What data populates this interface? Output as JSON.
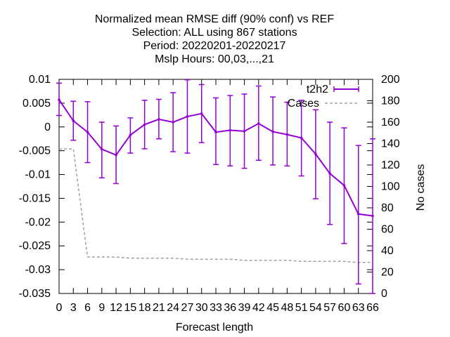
{
  "chart_data": {
    "type": "line",
    "title_lines": [
      "Normalized mean RMSE diff (90% conf) vs REF",
      "Selection: ALL using   867 stations",
      "Period: 20220201-20220217",
      "Mslp   Hours:  00,03,...,21"
    ],
    "xlabel": "Forecast length",
    "ylabel": "",
    "y2label": "No cases",
    "xlim": [
      0,
      66
    ],
    "ylim": [
      -0.035,
      0.01
    ],
    "y2lim": [
      0,
      200
    ],
    "x_ticks": [
      0,
      3,
      6,
      9,
      12,
      15,
      18,
      21,
      24,
      27,
      30,
      33,
      36,
      39,
      42,
      45,
      48,
      51,
      54,
      57,
      60,
      63,
      66
    ],
    "y_ticks": [
      0.01,
      0.005,
      0,
      -0.005,
      -0.01,
      -0.015,
      -0.02,
      -0.025,
      -0.03,
      -0.035
    ],
    "y_tick_labels": [
      "0.01",
      "0.005",
      "0",
      "-0.005",
      "-0.01",
      "-0.015",
      "-0.02",
      "-0.025",
      "-0.03",
      "-0.035"
    ],
    "y2_ticks": [
      0,
      20,
      40,
      60,
      80,
      100,
      120,
      140,
      160,
      180,
      200
    ],
    "grid": false,
    "legend_position": "top-right",
    "series": [
      {
        "name": "t2h2",
        "color": "#9400d3",
        "x": [
          0,
          3,
          6,
          9,
          12,
          15,
          18,
          21,
          24,
          27,
          30,
          33,
          36,
          39,
          42,
          45,
          48,
          51,
          54,
          57,
          60,
          63,
          66
        ],
        "y": [
          0.0057,
          0.0013,
          -0.0011,
          -0.0047,
          -0.0059,
          -0.0017,
          0.0005,
          0.0016,
          0.001,
          0.0022,
          0.0028,
          -0.0011,
          -0.0007,
          -0.0009,
          0.0007,
          -0.001,
          -0.0016,
          -0.0023,
          -0.0057,
          -0.0098,
          -0.0123,
          -0.0183,
          -0.0187
        ],
        "err_low": [
          0.0024,
          -0.0028,
          -0.0075,
          -0.0107,
          -0.0119,
          -0.0055,
          -0.0046,
          -0.0025,
          -0.0052,
          -0.0055,
          -0.0033,
          -0.0079,
          -0.0082,
          -0.0087,
          -0.007,
          -0.008,
          -0.0082,
          -0.0103,
          -0.0151,
          -0.0205,
          -0.0245,
          -0.033,
          -0.035
        ],
        "err_high": [
          0.0092,
          0.0054,
          0.0053,
          0.001,
          0.0002,
          0.0019,
          0.0056,
          0.0058,
          0.0072,
          0.0099,
          0.0089,
          0.0061,
          0.0066,
          0.0069,
          0.0086,
          0.0063,
          0.0052,
          0.0056,
          0.0036,
          0.001,
          -0.0002,
          -0.0039,
          -0.0025
        ]
      },
      {
        "name": "Cases",
        "axis": "y2",
        "color": "#a0a0a0",
        "style": "dashed",
        "x": [
          0,
          3,
          6,
          9,
          12,
          15,
          18,
          21,
          24,
          27,
          30,
          33,
          36,
          39,
          42,
          45,
          48,
          51,
          54,
          57,
          60,
          63,
          66
        ],
        "y": [
          135,
          135,
          34,
          34,
          34,
          33,
          33,
          33,
          33,
          32,
          32,
          32,
          32,
          31,
          31,
          31,
          31,
          30,
          30,
          30,
          30,
          29,
          29
        ]
      }
    ]
  }
}
